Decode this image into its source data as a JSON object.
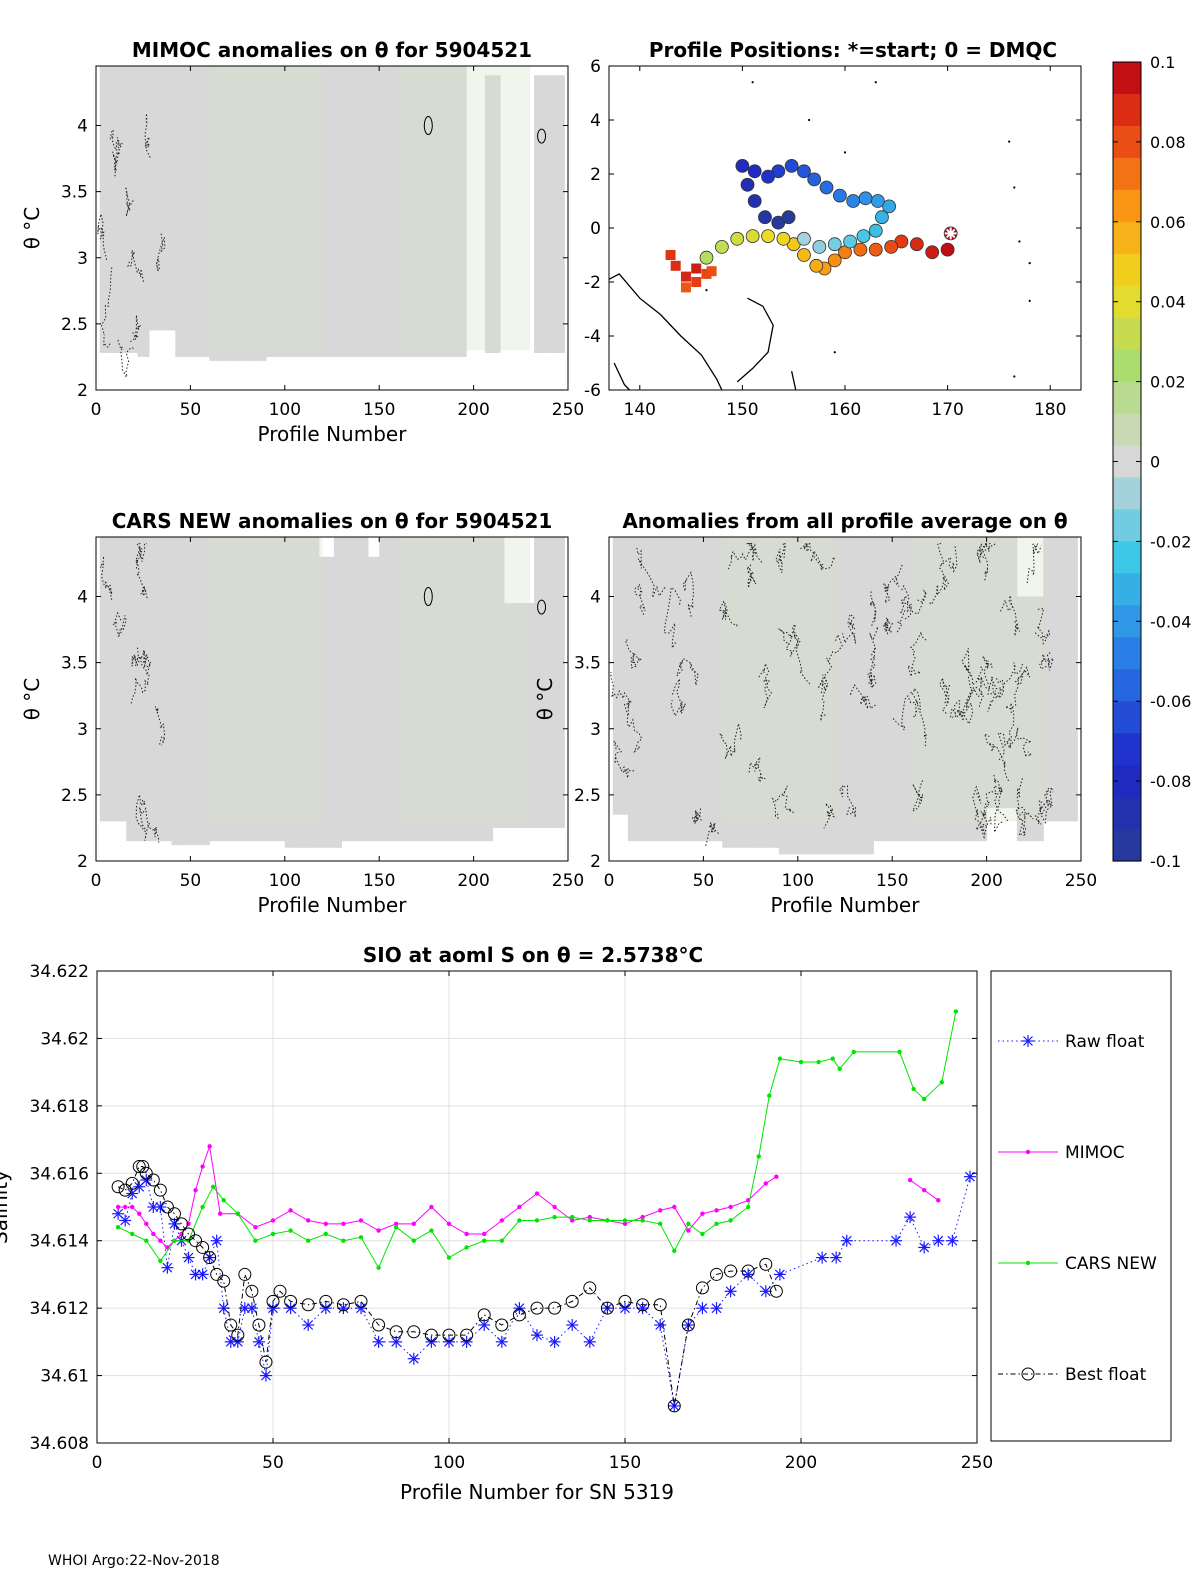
{
  "footer": "WHOI Argo:22-Nov-2018",
  "colors": {
    "panel_gray": "#d8d8d8",
    "raw_float": "#1a1aff",
    "mimoc": "#ff00ff",
    "cars_new": "#00e600",
    "best_float": "#000000",
    "grid": "#e0e0e0"
  },
  "chart_data": [
    {
      "id": "mimoc_anomalies",
      "type": "heatmap",
      "title": "MIMOC anomalies on θ  for 5904521",
      "xlabel": "Profile Number",
      "ylabel": "θ °C",
      "xlim": [
        0,
        250
      ],
      "ylim": [
        2,
        4.45
      ],
      "xticks": [
        0,
        50,
        100,
        150,
        200,
        250
      ],
      "yticks": [
        2,
        2.5,
        3,
        3.5,
        4
      ],
      "ytick_labels": [
        "2",
        "2.5",
        "3",
        "3.5",
        "4"
      ]
    },
    {
      "id": "profile_positions",
      "type": "scatter",
      "title": "Profile Positions: *=start; 0 = DMQC",
      "xlim": [
        137,
        183
      ],
      "ylim": [
        -6,
        6
      ],
      "xticks": [
        140,
        150,
        160,
        170,
        180
      ],
      "yticks": [
        -6,
        -4,
        -2,
        0,
        2,
        4,
        6
      ],
      "track": [
        [
          170.3,
          -0.2
        ],
        [
          170.0,
          -0.8
        ],
        [
          168.5,
          -0.9
        ],
        [
          167.0,
          -0.6
        ],
        [
          165.5,
          -0.5
        ],
        [
          164.5,
          -0.7
        ],
        [
          163.0,
          -0.8
        ],
        [
          161.5,
          -0.8
        ],
        [
          160.0,
          -0.9
        ],
        [
          159.0,
          -1.2
        ],
        [
          158.0,
          -1.5
        ],
        [
          157.2,
          -1.4
        ],
        [
          156.0,
          -1.0
        ],
        [
          155.0,
          -0.6
        ],
        [
          154.0,
          -0.4
        ],
        [
          152.5,
          -0.3
        ],
        [
          151.0,
          -0.3
        ],
        [
          149.5,
          -0.4
        ],
        [
          148.0,
          -0.7
        ],
        [
          146.5,
          -1.1
        ],
        [
          145.5,
          -1.5
        ],
        [
          144.5,
          -1.8
        ],
        [
          143.5,
          -1.4
        ],
        [
          143.0,
          -1.0
        ],
        [
          145.5,
          -2.0
        ],
        [
          146.5,
          -1.7
        ],
        [
          147.0,
          -1.6
        ],
        [
          144.5,
          -2.2
        ],
        [
          156.0,
          -0.4
        ],
        [
          157.5,
          -0.7
        ],
        [
          159.0,
          -0.6
        ],
        [
          160.5,
          -0.5
        ],
        [
          161.8,
          -0.3
        ],
        [
          163.0,
          -0.1
        ],
        [
          163.6,
          0.4
        ],
        [
          164.3,
          0.8
        ],
        [
          163.2,
          1.0
        ],
        [
          162.0,
          1.1
        ],
        [
          160.8,
          1.0
        ],
        [
          159.5,
          1.2
        ],
        [
          158.2,
          1.5
        ],
        [
          157.0,
          1.8
        ],
        [
          156.0,
          2.1
        ],
        [
          154.8,
          2.3
        ],
        [
          153.5,
          2.1
        ],
        [
          152.5,
          1.9
        ],
        [
          151.2,
          2.1
        ],
        [
          150.0,
          2.3
        ],
        [
          150.5,
          1.6
        ],
        [
          151.2,
          1.0
        ],
        [
          152.2,
          0.4
        ],
        [
          153.5,
          0.2
        ],
        [
          154.5,
          0.4
        ]
      ],
      "start_marker": [
        170.3,
        -0.2
      ]
    },
    {
      "id": "cars_new_anomalies",
      "type": "heatmap",
      "title": "CARS NEW anomalies on θ for 5904521",
      "xlabel": "Profile Number",
      "ylabel": "θ °C",
      "xlim": [
        0,
        250
      ],
      "ylim": [
        2,
        4.45
      ],
      "xticks": [
        0,
        50,
        100,
        150,
        200,
        250
      ],
      "yticks": [
        2,
        2.5,
        3,
        3.5,
        4
      ],
      "ytick_labels": [
        "2",
        "2.5",
        "3",
        "3.5",
        "4"
      ]
    },
    {
      "id": "all_profile_anomalies",
      "type": "heatmap",
      "title": "Anomalies from all profile average on θ",
      "xlabel": "Profile Number",
      "ylabel": "θ °C",
      "xlim": [
        0,
        250
      ],
      "ylim": [
        2,
        4.45
      ],
      "xticks": [
        0,
        50,
        100,
        150,
        200,
        250
      ],
      "yticks": [
        2,
        2.5,
        3,
        3.5,
        4
      ],
      "ytick_labels": [
        "2",
        "2.5",
        "3",
        "3.5",
        "4"
      ]
    },
    {
      "id": "colorbar",
      "type": "heatmap",
      "range": [
        -0.1,
        0.1
      ],
      "tick_labels": [
        "0.1",
        "0.08",
        "0.06",
        "0.04",
        "0.02",
        "0",
        "-0.02",
        "-0.04",
        "-0.06",
        "-0.08",
        "-0.1"
      ],
      "tick_values": [
        0.1,
        0.08,
        0.06,
        0.04,
        0.02,
        0,
        -0.02,
        -0.04,
        -0.06,
        -0.08,
        -0.1
      ]
    },
    {
      "id": "salinity_series",
      "type": "line",
      "title": "SIO at aoml S on θ = 2.5738°C",
      "xlabel": "Profile Number for SN 5319",
      "ylabel": "Salinity",
      "xlim": [
        0,
        250
      ],
      "ylim": [
        34.608,
        34.622
      ],
      "xticks": [
        0,
        50,
        100,
        150,
        200,
        250
      ],
      "yticks": [
        34.608,
        34.61,
        34.612,
        34.614,
        34.616,
        34.618,
        34.62,
        34.622
      ],
      "ytick_labels": [
        "34.608",
        "34.61",
        "34.612",
        "34.614",
        "34.616",
        "34.618",
        "34.62",
        "34.622"
      ],
      "legend": [
        "Raw float",
        "MIMOC",
        "CARS NEW",
        "Best float"
      ],
      "legend_placement": "right, outside",
      "series": [
        {
          "name": "Raw float",
          "x": [
            6,
            8,
            10,
            12,
            14,
            16,
            18,
            20,
            22,
            24,
            26,
            28,
            30,
            32,
            34,
            36,
            38,
            40,
            42,
            44,
            46,
            48,
            50,
            55,
            60,
            65,
            70,
            75,
            80,
            85,
            90,
            95,
            100,
            105,
            110,
            115,
            120,
            125,
            130,
            135,
            140,
            145,
            150,
            155,
            160,
            164,
            168,
            172,
            176,
            180,
            185,
            190,
            194,
            206,
            210,
            213,
            227,
            231,
            235,
            239,
            243,
            248
          ],
          "y": [
            34.6148,
            34.6146,
            34.6154,
            34.6156,
            34.6158,
            34.615,
            34.615,
            34.6132,
            34.6145,
            34.614,
            34.6135,
            34.613,
            34.613,
            34.6135,
            34.614,
            34.612,
            34.611,
            34.611,
            34.612,
            34.612,
            34.611,
            34.61,
            34.612,
            34.612,
            34.6115,
            34.612,
            34.612,
            34.612,
            34.611,
            34.611,
            34.6105,
            34.611,
            34.611,
            34.611,
            34.6115,
            34.611,
            34.612,
            34.6112,
            34.611,
            34.6115,
            34.611,
            34.612,
            34.612,
            34.612,
            34.6115,
            34.6091,
            34.6115,
            34.612,
            34.612,
            34.6125,
            34.613,
            34.6125,
            34.613,
            34.6135,
            34.6135,
            34.614,
            34.614,
            34.6147,
            34.6138,
            34.614,
            34.614,
            34.6159
          ]
        },
        {
          "name": "MIMOC",
          "x": [
            6,
            8,
            10,
            12,
            14,
            16,
            18,
            20,
            22,
            24,
            26,
            28,
            30,
            32,
            35,
            40,
            45,
            50,
            55,
            60,
            65,
            70,
            75,
            80,
            85,
            90,
            95,
            100,
            105,
            110,
            115,
            120,
            125,
            130,
            135,
            140,
            145,
            150,
            155,
            160,
            164,
            168,
            172,
            176,
            180,
            185,
            190,
            193,
            231,
            235,
            239
          ],
          "y": [
            34.615,
            34.615,
            34.615,
            34.6148,
            34.6145,
            34.6142,
            34.614,
            34.6138,
            34.614,
            34.6142,
            34.6145,
            34.6155,
            34.6162,
            34.6168,
            34.6148,
            34.6148,
            34.6144,
            34.6146,
            34.6149,
            34.6146,
            34.6145,
            34.6145,
            34.6146,
            34.6143,
            34.6145,
            34.6145,
            34.615,
            34.6145,
            34.6142,
            34.6142,
            34.6146,
            34.615,
            34.6154,
            34.615,
            34.6146,
            34.6147,
            34.6146,
            34.6145,
            34.6147,
            34.6149,
            34.615,
            34.6143,
            34.6148,
            34.6149,
            34.615,
            34.6152,
            34.6157,
            34.6159,
            34.6158,
            34.6155,
            34.6152
          ]
        },
        {
          "name": "CARS NEW",
          "x": [
            6,
            10,
            14,
            18,
            22,
            26,
            30,
            33,
            36,
            40,
            45,
            50,
            55,
            60,
            65,
            70,
            75,
            80,
            85,
            90,
            95,
            100,
            105,
            110,
            115,
            120,
            125,
            130,
            135,
            140,
            145,
            150,
            155,
            160,
            164,
            168,
            172,
            176,
            180,
            185,
            188,
            191,
            194,
            200,
            205,
            209,
            211,
            215,
            228,
            232,
            235,
            240,
            244
          ],
          "y": [
            34.6144,
            34.6142,
            34.614,
            34.6134,
            34.614,
            34.614,
            34.615,
            34.6156,
            34.6152,
            34.6148,
            34.614,
            34.6142,
            34.6143,
            34.614,
            34.6142,
            34.614,
            34.6141,
            34.6132,
            34.6144,
            34.614,
            34.6143,
            34.6135,
            34.6138,
            34.614,
            34.614,
            34.6146,
            34.6146,
            34.6147,
            34.6147,
            34.6146,
            34.6146,
            34.6146,
            34.6146,
            34.6145,
            34.6137,
            34.6145,
            34.6142,
            34.6145,
            34.6146,
            34.615,
            34.6165,
            34.6183,
            34.6194,
            34.6193,
            34.6193,
            34.6194,
            34.6191,
            34.6196,
            34.6196,
            34.6185,
            34.6182,
            34.6187,
            34.6208
          ]
        },
        {
          "name": "Best float",
          "x": [
            6,
            8,
            10,
            12,
            13,
            14,
            16,
            18,
            20,
            22,
            24,
            26,
            28,
            30,
            32,
            34,
            36,
            38,
            40,
            42,
            44,
            46,
            48,
            50,
            52,
            55,
            60,
            65,
            70,
            75,
            80,
            85,
            90,
            95,
            100,
            105,
            110,
            115,
            120,
            125,
            130,
            135,
            140,
            145,
            150,
            155,
            160,
            164,
            168,
            172,
            176,
            180,
            185,
            190,
            193
          ],
          "y": [
            34.6156,
            34.6155,
            34.6157,
            34.6162,
            34.6162,
            34.616,
            34.6158,
            34.6155,
            34.615,
            34.6148,
            34.6145,
            34.6142,
            34.614,
            34.6138,
            34.6135,
            34.613,
            34.6128,
            34.6115,
            34.6112,
            34.613,
            34.6125,
            34.6115,
            34.6104,
            34.6122,
            34.6125,
            34.6122,
            34.6121,
            34.6122,
            34.6121,
            34.6122,
            34.6115,
            34.6113,
            34.6113,
            34.6112,
            34.6112,
            34.6112,
            34.6118,
            34.6115,
            34.6118,
            34.612,
            34.612,
            34.6122,
            34.6126,
            34.612,
            34.6122,
            34.6121,
            34.6121,
            34.6091,
            34.6115,
            34.6126,
            34.613,
            34.6131,
            34.6131,
            34.6133,
            34.6125
          ]
        }
      ]
    }
  ]
}
